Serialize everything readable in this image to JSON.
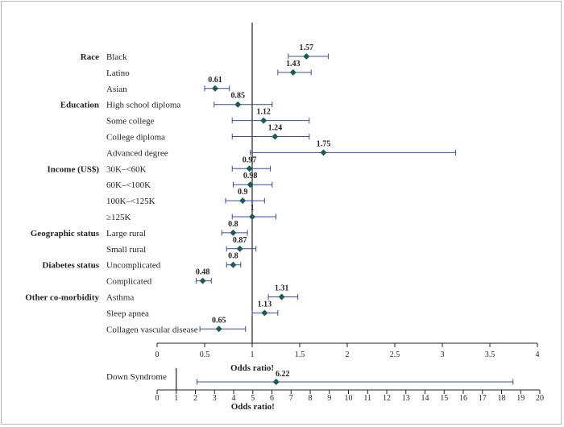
{
  "chart_data": [
    {
      "type": "forest",
      "xlabel": "Odds ratio!",
      "xlim": [
        0,
        4
      ],
      "xticks": [
        "0",
        "0.5",
        "1",
        "1.5",
        "2",
        "2.5",
        "3",
        "3.5",
        "4"
      ],
      "reference_line": 1,
      "groups": [
        {
          "label": "Race",
          "rows": [
            {
              "label": "Black",
              "or": 1.57,
              "ci": [
                1.38,
                1.8
              ],
              "value_label": "1.57"
            },
            {
              "label": "Latino",
              "or": 1.43,
              "ci": [
                1.27,
                1.62
              ],
              "value_label": "1.43"
            },
            {
              "label": "Asian",
              "or": 0.61,
              "ci": [
                0.5,
                0.76
              ],
              "value_label": "0.61"
            }
          ]
        },
        {
          "label": "Education",
          "rows": [
            {
              "label": "High school diploma",
              "or": 0.85,
              "ci": [
                0.6,
                1.21
              ],
              "value_label": "0.85"
            },
            {
              "label": "Some college",
              "or": 1.12,
              "ci": [
                0.79,
                1.6
              ],
              "value_label": "1.12"
            },
            {
              "label": "College diploma",
              "or": 1.24,
              "ci": [
                0.79,
                1.6
              ],
              "value_label": "1.24"
            },
            {
              "label": "Advanced degree",
              "or": 1.75,
              "ci": [
                0.98,
                3.14
              ],
              "value_label": "1.75"
            }
          ]
        },
        {
          "label": "Income (US$)",
          "rows": [
            {
              "label": "30K–<60K",
              "or": 0.97,
              "ci": [
                0.79,
                1.19
              ],
              "value_label": "0.97"
            },
            {
              "label": "60K–<100K",
              "or": 0.98,
              "ci": [
                0.8,
                1.21
              ],
              "value_label": "0.98"
            },
            {
              "label": "100K–<125K",
              "or": 0.9,
              "ci": [
                0.72,
                1.13
              ],
              "value_label": "0.9"
            },
            {
              "label": "≥125K",
              "or": 1.0,
              "ci": [
                0.79,
                1.25
              ],
              "value_label": "1"
            }
          ]
        },
        {
          "label": "Geographic status",
          "rows": [
            {
              "label": "Large rural",
              "or": 0.8,
              "ci": [
                0.68,
                0.95
              ],
              "value_label": "0.8"
            },
            {
              "label": "Small rural",
              "or": 0.87,
              "ci": [
                0.73,
                1.04
              ],
              "value_label": "0.87"
            }
          ]
        },
        {
          "label": "Diabetes status",
          "rows": [
            {
              "label": "Uncomplicated",
              "or": 0.8,
              "ci": [
                0.73,
                0.88
              ],
              "value_label": "0.8"
            },
            {
              "label": "Complicated",
              "or": 0.48,
              "ci": [
                0.41,
                0.57
              ],
              "value_label": "0.48"
            }
          ]
        },
        {
          "label": "Other co-morbidity",
          "rows": [
            {
              "label": "Asthma",
              "or": 1.31,
              "ci": [
                1.17,
                1.48
              ],
              "value_label": "1.31"
            },
            {
              "label": "Sleep apnea",
              "or": 1.13,
              "ci": [
                1.0,
                1.27
              ],
              "value_label": "1.13"
            },
            {
              "label": "Collagen vascular disease",
              "or": 0.65,
              "ci": [
                0.45,
                0.93
              ],
              "value_label": "0.65"
            }
          ]
        }
      ]
    },
    {
      "type": "forest",
      "xlabel": "Odds ratio!",
      "xlim": [
        0,
        20
      ],
      "xticks": [
        "0",
        "1",
        "2",
        "3",
        "4",
        "5",
        "6",
        "7",
        "8",
        "9",
        "10",
        "11",
        "12",
        "13",
        "14",
        "15",
        "16",
        "17",
        "18",
        "19",
        "20"
      ],
      "reference_line": 1,
      "rows": [
        {
          "label": "Down Syndrome",
          "or": 6.22,
          "ci": [
            2.08,
            18.6
          ],
          "value_label": "6.22"
        }
      ]
    }
  ],
  "colors": {
    "marker": "#1f5a56",
    "ci_line": "#3a4aa0",
    "axis": "#231f20"
  }
}
